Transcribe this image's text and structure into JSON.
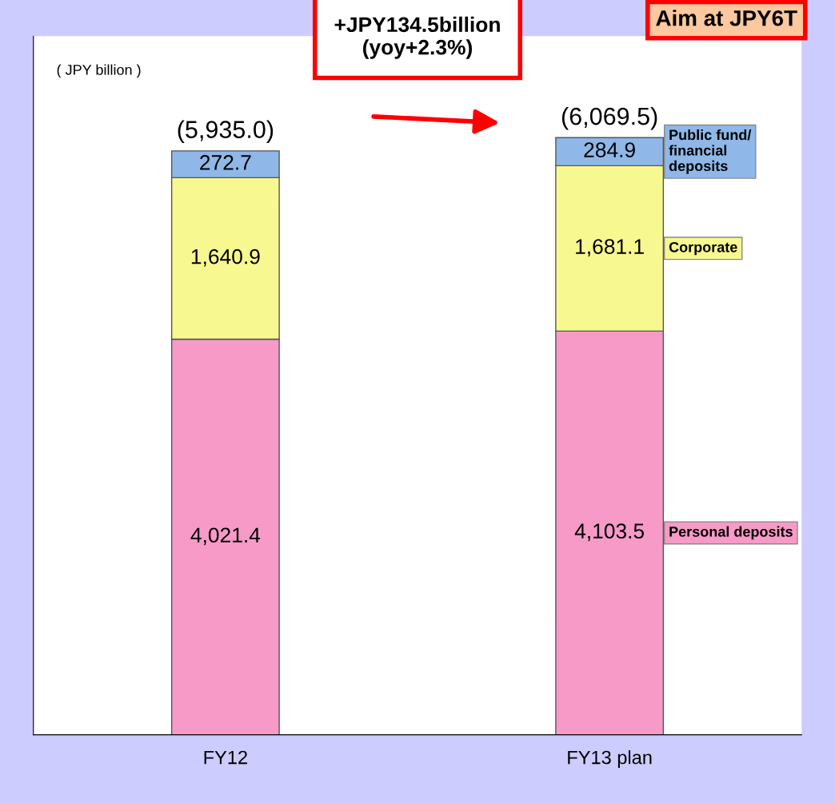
{
  "chart_data": {
    "type": "bar",
    "stacked": true,
    "categories": [
      "FY12",
      "FY13 plan"
    ],
    "series": [
      {
        "name": "Personal deposits",
        "color": "#f79ac8",
        "values": [
          4021.4,
          4103.5
        ],
        "value_labels": [
          "4,021.4",
          "4,103.5"
        ]
      },
      {
        "name": "Corporate",
        "color": "#f8f890",
        "values": [
          1640.9,
          1681.1
        ],
        "value_labels": [
          "1,640.9",
          "1,681.1"
        ]
      },
      {
        "name": "Public fund/\nfinancial\ndeposits",
        "color": "#8fb8e8",
        "values": [
          272.7,
          284.9
        ],
        "value_labels": [
          "272.7",
          "284.9"
        ]
      }
    ],
    "totals": [
      "(5,935.0)",
      "(6,069.5)"
    ],
    "annotations": [
      "( JPY billion )",
      "+JPY134.5billion\n(yoy+2.3%)",
      "Aim at JPY6T"
    ],
    "tick_labels": "x",
    "legend": false,
    "grid": false
  }
}
